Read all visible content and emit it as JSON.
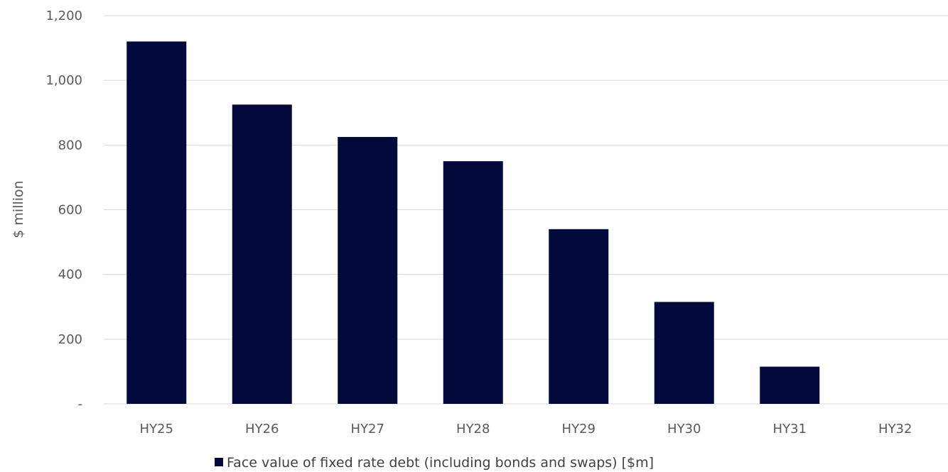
{
  "chart_data": {
    "type": "bar",
    "categories": [
      "HY25",
      "HY26",
      "HY27",
      "HY28",
      "HY29",
      "HY30",
      "HY31",
      "HY32"
    ],
    "series": [
      {
        "name": "Face value of fixed rate debt (including bonds and swaps) [$m]",
        "values": [
          1120,
          925,
          825,
          750,
          540,
          315,
          115,
          0
        ]
      }
    ],
    "ylabel": "$ million",
    "xlabel": "",
    "ylim": [
      0,
      1200
    ],
    "yticks": [
      0,
      200,
      400,
      600,
      800,
      1000,
      1200
    ],
    "ytick_labels": [
      "-",
      "200",
      "400",
      "600",
      "800",
      "1,000",
      "1,200"
    ],
    "grid": true,
    "legend_position": "bottom",
    "colors": {
      "bar": "#020a3b",
      "grid": "#d9d9d9",
      "text": "#595959"
    }
  }
}
